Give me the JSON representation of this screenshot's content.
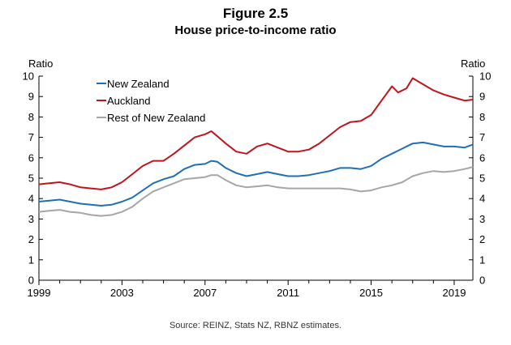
{
  "figure": {
    "number": "Figure 2.5",
    "title": "House price-to-income ratio",
    "source": "Source: REINZ, Stats NZ, RBNZ estimates."
  },
  "chart_data": {
    "type": "line",
    "title": "House price-to-income ratio",
    "ylabel_left": "Ratio",
    "ylabel_right": "Ratio",
    "xlim": [
      1999,
      2019.9
    ],
    "ylim": [
      0,
      10
    ],
    "xticks": [
      1999,
      2003,
      2007,
      2011,
      2015,
      2019
    ],
    "yticks": [
      0,
      1,
      2,
      3,
      4,
      5,
      6,
      7,
      8,
      9,
      10
    ],
    "grid": false,
    "legend_position": "top-left",
    "series": [
      {
        "name": "New Zealand",
        "color": "#1f6fb5",
        "x": [
          1999,
          1999.5,
          2000,
          2000.5,
          2001,
          2001.5,
          2002,
          2002.5,
          2003,
          2003.5,
          2004,
          2004.5,
          2005,
          2005.5,
          2006,
          2006.5,
          2007,
          2007.3,
          2007.6,
          2008,
          2008.5,
          2009,
          2009.5,
          2010,
          2010.5,
          2011,
          2011.5,
          2012,
          2012.5,
          2013,
          2013.5,
          2014,
          2014.5,
          2015,
          2015.5,
          2016,
          2016.5,
          2017,
          2017.5,
          2018,
          2018.5,
          2019,
          2019.5,
          2019.9
        ],
        "y": [
          3.85,
          3.9,
          3.95,
          3.85,
          3.75,
          3.7,
          3.65,
          3.7,
          3.85,
          4.05,
          4.4,
          4.75,
          4.95,
          5.1,
          5.45,
          5.65,
          5.7,
          5.85,
          5.8,
          5.5,
          5.25,
          5.1,
          5.2,
          5.3,
          5.2,
          5.1,
          5.1,
          5.15,
          5.25,
          5.35,
          5.5,
          5.5,
          5.45,
          5.6,
          5.95,
          6.2,
          6.45,
          6.7,
          6.75,
          6.65,
          6.55,
          6.55,
          6.5,
          6.65
        ]
      },
      {
        "name": "Auckland",
        "color": "#c0141c",
        "x": [
          1999,
          1999.5,
          2000,
          2000.5,
          2001,
          2001.5,
          2002,
          2002.5,
          2003,
          2003.5,
          2004,
          2004.5,
          2005,
          2005.5,
          2006,
          2006.5,
          2007,
          2007.3,
          2007.6,
          2008,
          2008.5,
          2009,
          2009.5,
          2010,
          2010.5,
          2011,
          2011.5,
          2012,
          2012.5,
          2013,
          2013.5,
          2014,
          2014.5,
          2015,
          2015.5,
          2016,
          2016.3,
          2016.7,
          2017,
          2017.5,
          2018,
          2018.5,
          2019,
          2019.5,
          2019.9
        ],
        "y": [
          4.7,
          4.75,
          4.8,
          4.7,
          4.55,
          4.5,
          4.45,
          4.55,
          4.8,
          5.2,
          5.6,
          5.85,
          5.85,
          6.2,
          6.6,
          7.0,
          7.15,
          7.3,
          7.05,
          6.7,
          6.3,
          6.2,
          6.55,
          6.7,
          6.5,
          6.3,
          6.3,
          6.4,
          6.7,
          7.1,
          7.5,
          7.75,
          7.8,
          8.1,
          8.8,
          9.5,
          9.2,
          9.4,
          9.9,
          9.6,
          9.3,
          9.1,
          8.95,
          8.8,
          8.85
        ]
      },
      {
        "name": "Rest of New Zealand",
        "color": "#a6a6a6",
        "x": [
          1999,
          1999.5,
          2000,
          2000.5,
          2001,
          2001.5,
          2002,
          2002.5,
          2003,
          2003.5,
          2004,
          2004.5,
          2005,
          2005.5,
          2006,
          2006.5,
          2007,
          2007.3,
          2007.6,
          2008,
          2008.5,
          2009,
          2009.5,
          2010,
          2010.5,
          2011,
          2011.5,
          2012,
          2012.5,
          2013,
          2013.5,
          2014,
          2014.5,
          2015,
          2015.5,
          2016,
          2016.5,
          2017,
          2017.5,
          2018,
          2018.5,
          2019,
          2019.5,
          2019.9
        ],
        "y": [
          3.35,
          3.4,
          3.45,
          3.35,
          3.3,
          3.2,
          3.15,
          3.2,
          3.35,
          3.6,
          4.0,
          4.35,
          4.55,
          4.75,
          4.95,
          5.0,
          5.05,
          5.15,
          5.15,
          4.9,
          4.65,
          4.55,
          4.6,
          4.65,
          4.55,
          4.5,
          4.5,
          4.5,
          4.5,
          4.5,
          4.5,
          4.45,
          4.35,
          4.4,
          4.55,
          4.65,
          4.8,
          5.1,
          5.25,
          5.35,
          5.3,
          5.35,
          5.45,
          5.55
        ]
      }
    ]
  }
}
